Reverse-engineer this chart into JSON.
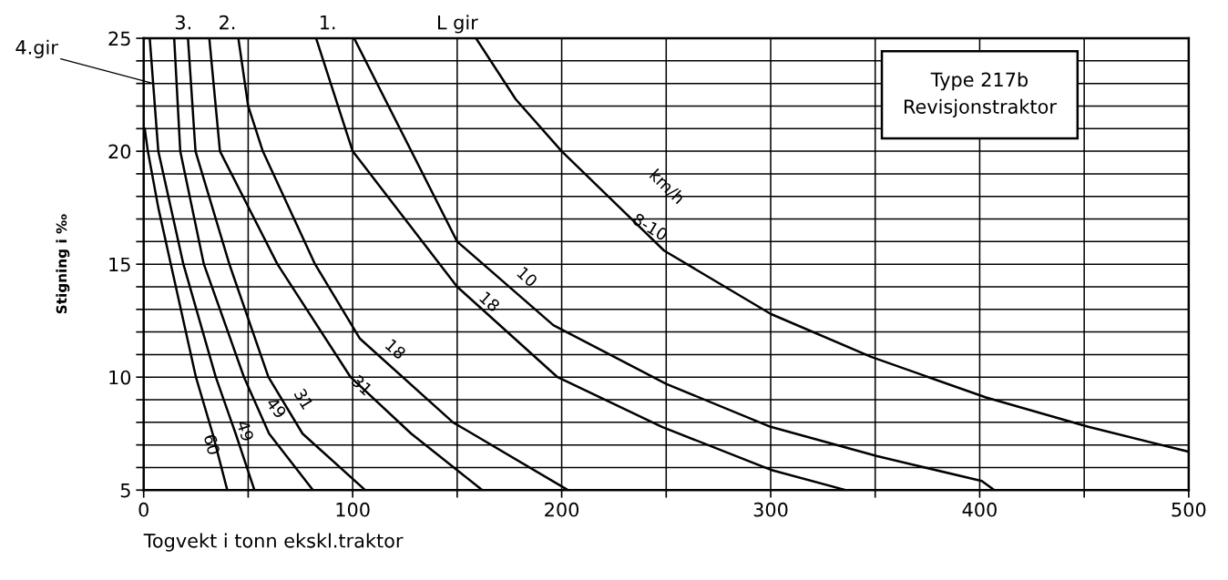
{
  "chart_data": {
    "type": "line",
    "title": "Type 217b\nRevisjonstraktor",
    "xlabel": "Togvekt i tonn ekskl.traktor",
    "ylabel": "Stigning i ‰",
    "xlim": [
      0,
      500
    ],
    "ylim": [
      5,
      25
    ],
    "xticks": [
      0,
      {
        "value": 50,
        "label": null
      },
      100,
      {
        "value": 150,
        "label": null
      },
      200,
      {
        "value": 250,
        "label": null
      },
      300,
      {
        "value": 350,
        "label": null
      },
      400,
      {
        "value": 450,
        "label": null
      },
      500
    ],
    "yticks": [
      5,
      {
        "value": 6,
        "label": null
      },
      {
        "value": 7,
        "label": null
      },
      {
        "value": 8,
        "label": null
      },
      {
        "value": 9,
        "label": null
      },
      10,
      {
        "value": 11,
        "label": null
      },
      {
        "value": 12,
        "label": null
      },
      {
        "value": 13,
        "label": null
      },
      {
        "value": 14,
        "label": null
      },
      15,
      {
        "value": 16,
        "label": null
      },
      {
        "value": 17,
        "label": null
      },
      {
        "value": 18,
        "label": null
      },
      {
        "value": 19,
        "label": null
      },
      20,
      {
        "value": 21,
        "label": null
      },
      {
        "value": 22,
        "label": null
      },
      {
        "value": 23,
        "label": null
      },
      {
        "value": 24,
        "label": null
      },
      25
    ],
    "grid": true,
    "marker": "none",
    "line_style": "solid",
    "series": [
      {
        "color": "#000000",
        "x": [
          0.5,
          2,
          7,
          13,
          25,
          33,
          40
        ],
        "values": [
          21,
          20,
          17.5,
          15,
          10,
          7.5,
          5
        ]
      },
      {
        "color": "#000000",
        "x": [
          2.9,
          7,
          19,
          34.5,
          44,
          53
        ],
        "values": [
          25,
          20,
          15,
          10,
          7.5,
          5
        ]
      },
      {
        "color": "#000000",
        "x": [
          14.6,
          17.5,
          28.8,
          48,
          60,
          81
        ],
        "values": [
          25,
          20,
          15,
          10,
          7.5,
          5
        ]
      },
      {
        "color": "#000000",
        "x": [
          21.2,
          24.8,
          41,
          59.7,
          76,
          106
        ],
        "values": [
          25,
          20,
          15,
          10,
          7.5,
          5
        ]
      },
      {
        "color": "#000000",
        "x": [
          31.4,
          36.5,
          64,
          99,
          128,
          162
        ],
        "values": [
          25,
          20,
          15,
          10,
          7.5,
          5
        ]
      },
      {
        "color": "#000000",
        "x": [
          45.3,
          50,
          57,
          82,
          103.5,
          148,
          203
        ],
        "values": [
          25,
          22,
          20,
          15,
          11.7,
          8,
          5
        ]
      },
      {
        "color": "#000000",
        "x": [
          82.5,
          100,
          150,
          198,
          248,
          300,
          336
        ],
        "values": [
          25,
          20,
          14,
          10,
          7.8,
          5.9,
          5
        ]
      },
      {
        "color": "#000000",
        "x": [
          100.7,
          150,
          196,
          250,
          300,
          351,
          401,
          407
        ],
        "values": [
          25,
          16,
          12.3,
          9.7,
          7.8,
          6.5,
          5.4,
          5
        ]
      },
      {
        "color": "#000000",
        "x": [
          159,
          178,
          200,
          249,
          300,
          348,
          403,
          452,
          500
        ],
        "values": [
          25,
          22.3,
          20,
          15.6,
          12.8,
          10.9,
          9.1,
          7.8,
          6.7
        ]
      }
    ],
    "annotations": [
      {
        "text": "4.gir",
        "x": 4.5,
        "y": 23
      },
      "3.",
      "2.",
      "1.",
      "L gir",
      "60",
      "49",
      "49",
      "31",
      "31",
      "18",
      "18",
      "10",
      "8-10",
      "km/h"
    ]
  }
}
